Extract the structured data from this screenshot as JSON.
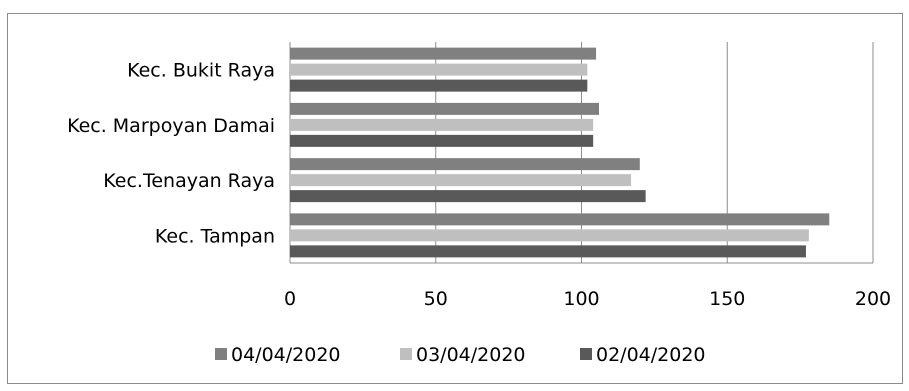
{
  "chart_data": {
    "type": "bar",
    "orientation": "horizontal",
    "categories": [
      "Kec. Bukit Raya",
      "Kec. Marpoyan Damai",
      "Kec.Tenayan Raya",
      "Kec. Tampan"
    ],
    "series": [
      {
        "name": "04/04/2020",
        "color": "#808080",
        "values": [
          105,
          106,
          120,
          185
        ]
      },
      {
        "name": "03/04/2020",
        "color": "#bfbfbf",
        "values": [
          102,
          104,
          117,
          178
        ]
      },
      {
        "name": "02/04/2020",
        "color": "#595959",
        "values": [
          102,
          104,
          122,
          177
        ]
      }
    ],
    "xlim": [
      0,
      200
    ],
    "xticks": [
      0,
      50,
      100,
      150,
      200
    ],
    "grid": true,
    "legend_position": "bottom",
    "title": "",
    "xlabel": "",
    "ylabel": ""
  }
}
